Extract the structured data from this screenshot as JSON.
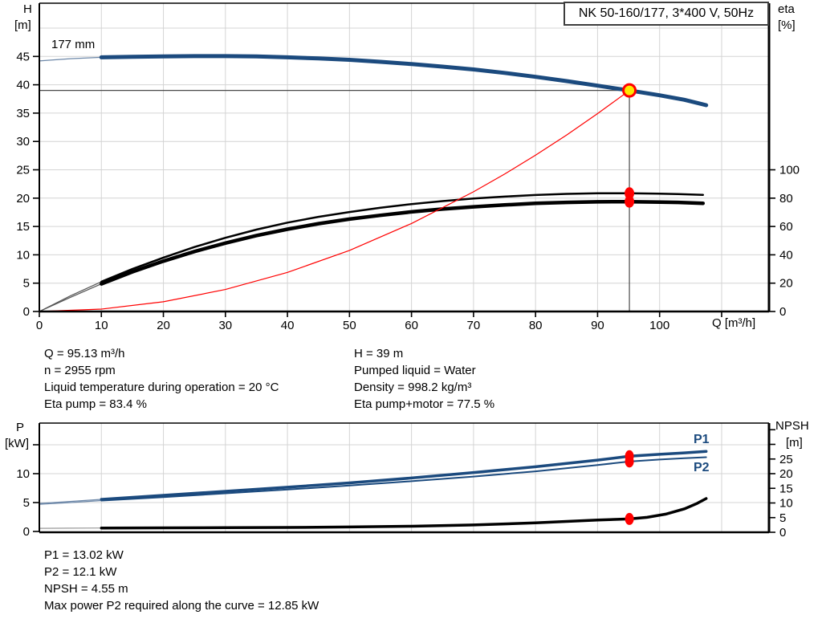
{
  "model_box": {
    "label": "NK 50-160/177, 3*400 V, 50Hz"
  },
  "impeller_label": "177 mm",
  "curve_labels": {
    "p1": "P1",
    "p2": "P2"
  },
  "axes": {
    "top_left_sym": "H",
    "top_left_unit": "[m]",
    "top_right_sym": "eta",
    "top_right_unit": "[%]",
    "x_label": "Q [m³/h]",
    "bottom_left_sym": "P",
    "bottom_left_unit": "[kW]",
    "bottom_right_sym": "NPSH",
    "bottom_right_unit": "[m]"
  },
  "info_block": {
    "left": [
      "Q = 95.13 m³/h",
      "n = 2955 rpm",
      "Liquid temperature during operation = 20 °C",
      "Eta pump = 83.4 %"
    ],
    "right": [
      "H = 39 m",
      "Pumped liquid = Water",
      "Density = 998.2 kg/m³",
      "Eta pump+motor = 77.5 %"
    ]
  },
  "result_block": [
    "P1 = 13.02 kW",
    "P2 = 12.1 kW",
    "NPSH = 4.55 m",
    "Max power P2 required along the curve = 12.85 kW"
  ],
  "colors": {
    "curve_blue": "#1B4A7E",
    "curve_black": "#000000",
    "system_red": "#FF0000",
    "dot_red": "#FF0000",
    "duty_fill": "#FFE800",
    "duty_stroke": "#FF0000",
    "grid": "#D4D4D4",
    "crosshair": "#4A4A4A",
    "frame": "#000000",
    "lead_blue": "#6C87A8",
    "lead_gray": "#555555"
  },
  "chart_data": [
    {
      "type": "line",
      "title": "NK 50-160/177, 3*400 V, 50Hz",
      "xlabel": "Q [m³/h]",
      "ylabel_left": "H [m]",
      "ylabel_right": "eta [%]",
      "xlim": [
        0,
        117.5
      ],
      "x_ticks": [
        0,
        10,
        20,
        30,
        40,
        50,
        60,
        70,
        80,
        90,
        100,
        110
      ],
      "x_tick_label_max": 100,
      "left_lim": [
        0,
        54.4
      ],
      "left_ticks": [
        0,
        5,
        10,
        15,
        20,
        25,
        30,
        35,
        40,
        45
      ],
      "right_lim": [
        0,
        218
      ],
      "right_ticks": [
        0,
        20,
        40,
        60,
        80,
        100
      ],
      "grid_h_left_units": [
        5,
        10,
        15,
        20,
        25,
        30,
        35,
        40,
        45,
        50
      ],
      "grid_v": [
        10,
        20,
        30,
        40,
        50,
        60,
        70,
        80,
        90,
        100,
        110
      ],
      "legend_position": "none",
      "series": [
        {
          "name": "pump-curve-177mm",
          "axis": "left",
          "color": "#1B4A7E",
          "width": 5,
          "lead_color": "#6C87A8",
          "lead": [
            [
              0,
              44.2
            ],
            [
              5,
              44.6
            ],
            [
              10,
              44.85
            ]
          ],
          "points": [
            [
              10,
              44.85
            ],
            [
              15,
              44.95
            ],
            [
              20,
              45.0
            ],
            [
              25,
              45.05
            ],
            [
              30,
              45.05
            ],
            [
              35,
              45.0
            ],
            [
              40,
              44.85
            ],
            [
              45,
              44.65
            ],
            [
              50,
              44.4
            ],
            [
              55,
              44.05
            ],
            [
              60,
              43.65
            ],
            [
              65,
              43.2
            ],
            [
              70,
              42.7
            ],
            [
              75,
              42.1
            ],
            [
              80,
              41.4
            ],
            [
              85,
              40.65
            ],
            [
              90,
              39.85
            ],
            [
              95.13,
              39.0
            ],
            [
              100,
              38.15
            ],
            [
              104,
              37.35
            ],
            [
              107.5,
              36.4
            ]
          ]
        },
        {
          "name": "eta-pump-curve",
          "axis": "right",
          "color": "#000000",
          "width": 2.5,
          "lead_color": "#555555",
          "lead": [
            [
              0,
              0
            ],
            [
              5,
              11
            ],
            [
              10,
              21
            ]
          ],
          "points": [
            [
              10,
              21
            ],
            [
              15,
              30
            ],
            [
              20,
              38
            ],
            [
              25,
              45.5
            ],
            [
              30,
              52
            ],
            [
              35,
              57.8
            ],
            [
              40,
              62.7
            ],
            [
              45,
              66.8
            ],
            [
              50,
              70.2
            ],
            [
              55,
              73.2
            ],
            [
              60,
              75.8
            ],
            [
              65,
              77.9
            ],
            [
              70,
              79.7
            ],
            [
              75,
              81.1
            ],
            [
              80,
              82.2
            ],
            [
              85,
              83.0
            ],
            [
              90,
              83.4
            ],
            [
              95.13,
              83.4
            ],
            [
              100,
              83.1
            ],
            [
              103,
              82.9
            ],
            [
              107,
              82.3
            ]
          ]
        },
        {
          "name": "eta-pump-motor-curve",
          "axis": "right",
          "color": "#000000",
          "width": 4.5,
          "lead_color": "#555555",
          "lead": [
            [
              0,
              0
            ],
            [
              5,
              10
            ],
            [
              10,
              19.5
            ]
          ],
          "points": [
            [
              10,
              19.5
            ],
            [
              15,
              28
            ],
            [
              20,
              35.5
            ],
            [
              25,
              42.3
            ],
            [
              30,
              48.3
            ],
            [
              35,
              53.6
            ],
            [
              40,
              58.1
            ],
            [
              45,
              62
            ],
            [
              50,
              65.2
            ],
            [
              55,
              67.9
            ],
            [
              60,
              70.3
            ],
            [
              65,
              72.3
            ],
            [
              70,
              73.9
            ],
            [
              75,
              75.2
            ],
            [
              80,
              76.3
            ],
            [
              85,
              77.0
            ],
            [
              90,
              77.4
            ],
            [
              95.13,
              77.5
            ],
            [
              100,
              77.2
            ],
            [
              103,
              77.0
            ],
            [
              107,
              76.4
            ]
          ]
        },
        {
          "name": "system-curve",
          "axis": "left",
          "color": "#FF0000",
          "width": 1.2,
          "points": [
            [
              0,
              0
            ],
            [
              10,
              0.43
            ],
            [
              20,
              1.72
            ],
            [
              30,
              3.88
            ],
            [
              40,
              6.9
            ],
            [
              50,
              10.78
            ],
            [
              60,
              15.52
            ],
            [
              70,
              21.12
            ],
            [
              75,
              24.24
            ],
            [
              80,
              27.59
            ],
            [
              85,
              31.14
            ],
            [
              90,
              34.91
            ],
            [
              95.13,
              39.0
            ]
          ]
        }
      ],
      "duty_point": {
        "q": 95.13,
        "h": 39,
        "eta_pump": 83.4,
        "eta_pump_motor": 77.5
      },
      "annotations": [
        "177 mm",
        "NK 50-160/177, 3*400 V, 50Hz"
      ]
    },
    {
      "type": "line",
      "xlabel": "Q [m³/h]",
      "ylabel_left": "P [kW]",
      "ylabel_right": "NPSH [m]",
      "xlim": [
        0,
        117.5
      ],
      "left_lim": [
        0,
        18.9
      ],
      "left_ticks": [
        0,
        5,
        10,
        15
      ],
      "left_tick_label_max": 10,
      "right_lim": [
        0,
        37.3
      ],
      "right_ticks": [
        0,
        5,
        10,
        15,
        20,
        25,
        30,
        35
      ],
      "right_tick_label_max": 25,
      "grid_h_left_units": [
        5,
        10,
        15
      ],
      "grid_v": [
        10,
        20,
        30,
        40,
        50,
        60,
        70,
        80,
        90,
        100,
        110
      ],
      "legend_position": "inline-right",
      "series": [
        {
          "name": "p1-curve",
          "axis": "left",
          "color": "#1B4A7E",
          "width": 3.5,
          "lead_color": "#6C87A8",
          "label": "P1",
          "lead": [
            [
              0,
              4.85
            ],
            [
              5,
              5.2
            ],
            [
              10,
              5.55
            ]
          ],
          "points": [
            [
              10,
              5.55
            ],
            [
              20,
              6.25
            ],
            [
              30,
              6.95
            ],
            [
              40,
              7.65
            ],
            [
              50,
              8.4
            ],
            [
              60,
              9.25
            ],
            [
              70,
              10.2
            ],
            [
              80,
              11.2
            ],
            [
              90,
              12.35
            ],
            [
              95.13,
              13.02
            ],
            [
              100,
              13.35
            ],
            [
              104,
              13.6
            ],
            [
              107.5,
              13.85
            ]
          ]
        },
        {
          "name": "p2-curve",
          "axis": "left",
          "color": "#1B4A7E",
          "width": 2,
          "lead_color": "#6C87A8",
          "label": "P2",
          "lead": [
            [
              0,
              4.7
            ],
            [
              5,
              5.0
            ],
            [
              10,
              5.35
            ]
          ],
          "points": [
            [
              10,
              5.35
            ],
            [
              20,
              5.95
            ],
            [
              30,
              6.6
            ],
            [
              40,
              7.25
            ],
            [
              50,
              7.95
            ],
            [
              60,
              8.7
            ],
            [
              70,
              9.5
            ],
            [
              80,
              10.4
            ],
            [
              90,
              11.5
            ],
            [
              95.13,
              12.1
            ],
            [
              100,
              12.45
            ],
            [
              104,
              12.68
            ],
            [
              107.5,
              12.85
            ]
          ]
        },
        {
          "name": "npsh-curve",
          "axis": "right",
          "color": "#000000",
          "width": 3.5,
          "lead_color": "#999999",
          "lead": [
            [
              0,
              1.35
            ],
            [
              5,
              1.4
            ],
            [
              10,
              1.45
            ]
          ],
          "points": [
            [
              10,
              1.45
            ],
            [
              20,
              1.5
            ],
            [
              30,
              1.55
            ],
            [
              40,
              1.65
            ],
            [
              50,
              1.8
            ],
            [
              60,
              2.05
            ],
            [
              70,
              2.5
            ],
            [
              80,
              3.2
            ],
            [
              90,
              4.2
            ],
            [
              95.13,
              4.55
            ],
            [
              98,
              5.1
            ],
            [
              101,
              6.2
            ],
            [
              104,
              8.0
            ],
            [
              106,
              9.8
            ],
            [
              107.5,
              11.5
            ]
          ]
        }
      ],
      "duty_dots": [
        {
          "q": 95.13,
          "axis": "left",
          "value": 13.02
        },
        {
          "q": 95.13,
          "axis": "left",
          "value": 12.1
        },
        {
          "q": 95.13,
          "axis": "right",
          "value": 4.55
        }
      ]
    }
  ]
}
